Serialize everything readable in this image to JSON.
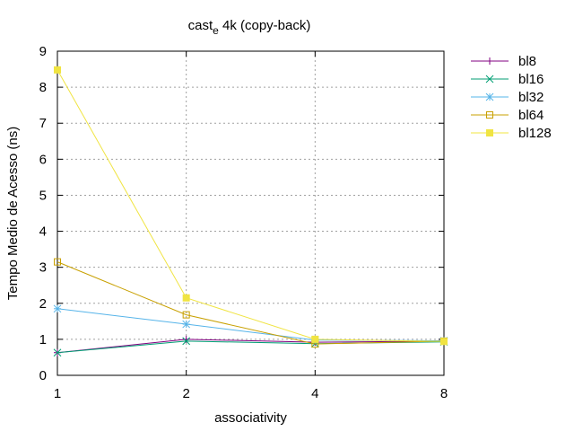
{
  "chart_data": {
    "type": "line",
    "title": "cast",
    "title_subscript": "e",
    "title_suffix": " 4k (copy-back)",
    "xlabel": "associativity",
    "ylabel": "Tempo Medio de Acesso (ns)",
    "categories": [
      "1",
      "2",
      "4",
      "8"
    ],
    "ylim": [
      0,
      9
    ],
    "yticks": [
      "0",
      "1",
      "2",
      "3",
      "4",
      "5",
      "6",
      "7",
      "8",
      "9"
    ],
    "grid": true,
    "legend_position": "right-top",
    "series": [
      {
        "name": "bl8",
        "color": "#800080",
        "marker": "plus",
        "values": [
          0.63,
          1.0,
          0.92,
          0.95
        ]
      },
      {
        "name": "bl16",
        "color": "#009e73",
        "marker": "cross",
        "values": [
          0.63,
          0.95,
          0.88,
          0.93
        ]
      },
      {
        "name": "bl32",
        "color": "#56b4e9",
        "marker": "asterisk",
        "values": [
          1.85,
          1.42,
          0.98,
          0.96
        ]
      },
      {
        "name": "bl64",
        "color": "#c8a000",
        "marker": "open-square",
        "values": [
          3.15,
          1.68,
          0.87,
          0.95
        ]
      },
      {
        "name": "bl128",
        "color": "#f0e442",
        "marker": "filled-square",
        "values": [
          8.48,
          2.15,
          1.0,
          0.94
        ]
      }
    ]
  }
}
